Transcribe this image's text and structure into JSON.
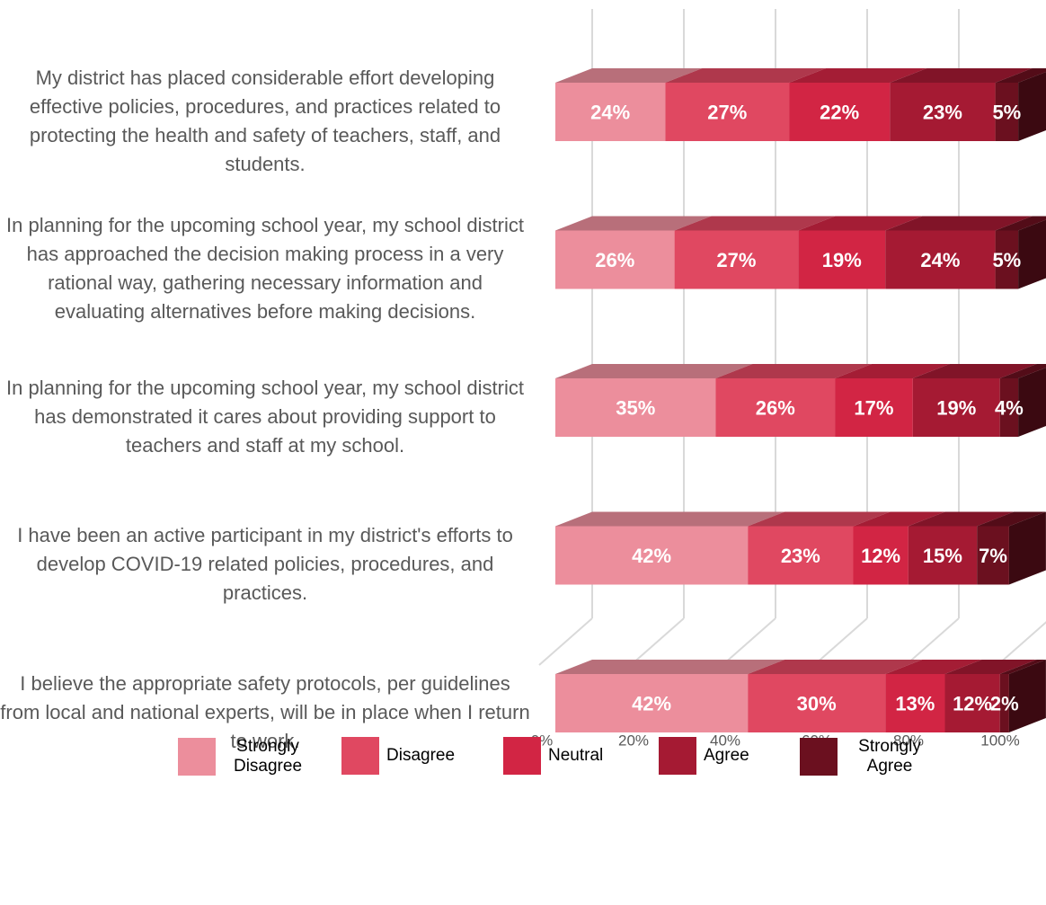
{
  "chart_data": {
    "type": "bar3d_stacked_horizontal",
    "categories": [
      "My district has placed considerable effort developing effective policies, procedures, and practices related to protecting the health and safety of teachers, staff, and students.",
      "In planning for the upcoming school year, my school district has approached the decision making process in a very rational way, gathering necessary information and evaluating alternatives before making decisions.",
      "In planning for the upcoming school year, my school district has demonstrated it cares about providing support to teachers and staff at my school.",
      "I have been an active participant in my district's efforts to develop COVID-19 related policies, procedures, and practices.",
      "I believe the appropriate safety protocols, per guidelines from local and national experts, will be in place when I return to work."
    ],
    "series": [
      {
        "name": "Strongly Disagree",
        "color": "#ec8e9c",
        "values": [
          24,
          26,
          35,
          42,
          42
        ],
        "value_labels": [
          "24%",
          "26%",
          "35%",
          "42%",
          "42%"
        ]
      },
      {
        "name": "Disagree",
        "color": "#e04861",
        "values": [
          27,
          27,
          26,
          23,
          30
        ],
        "value_labels": [
          "27%",
          "27%",
          "26%",
          "23%",
          "30%"
        ]
      },
      {
        "name": "Neutral",
        "color": "#d22544",
        "values": [
          22,
          19,
          17,
          12,
          13
        ],
        "value_labels": [
          "22%",
          "19%",
          "17%",
          "12%",
          "13%"
        ]
      },
      {
        "name": "Agree",
        "color": "#a51a33",
        "values": [
          23,
          24,
          19,
          15,
          12
        ],
        "value_labels": [
          "23%",
          "24%",
          "19%",
          "15%",
          "12%"
        ]
      },
      {
        "name": "Strongly Agree",
        "color": "#6b101f",
        "values": [
          5,
          5,
          4,
          7,
          2
        ],
        "value_labels": [
          "5%",
          "5%",
          "4%",
          "7%",
          "2%"
        ]
      }
    ],
    "xlim": [
      0,
      100
    ],
    "xticks": [
      {
        "value": 0,
        "label": "0%"
      },
      {
        "value": 20,
        "label": "20%"
      },
      {
        "value": 40,
        "label": "40%"
      },
      {
        "value": 60,
        "label": "60%"
      },
      {
        "value": 80,
        "label": "80%"
      },
      {
        "value": 100,
        "label": "100%"
      }
    ],
    "grid": true,
    "legend": "bottom"
  }
}
